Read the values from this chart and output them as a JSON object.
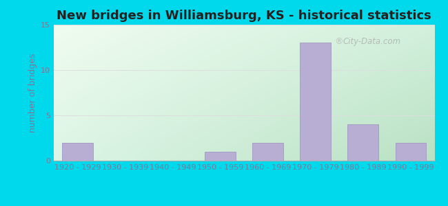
{
  "title": "New bridges in Williamsburg, KS - historical statistics",
  "ylabel": "number of bridges",
  "categories": [
    "1920 - 1929",
    "1930 - 1939",
    "1940 - 1949",
    "1950 - 1959",
    "1960 - 1969",
    "1970 - 1979",
    "1980 - 1989",
    "1990 - 1999"
  ],
  "values": [
    2,
    0,
    0,
    1,
    2,
    13,
    4,
    2
  ],
  "bar_color": "#b8aed4",
  "bar_edge_color": "#a098c0",
  "ylim": [
    0,
    15
  ],
  "yticks": [
    0,
    5,
    10,
    15
  ],
  "background_outer": "#00d8ec",
  "background_inner_topleft": "#f0f8f0",
  "background_inner_bottomright": "#c8e8c8",
  "title_fontsize": 13,
  "axis_label_fontsize": 9,
  "tick_fontsize": 8,
  "grid_color": "#dddddd",
  "watermark_text": "City-Data.com",
  "ylabel_color": "#7a7a9a",
  "tick_color": "#7a7a9a",
  "title_color": "#222222"
}
